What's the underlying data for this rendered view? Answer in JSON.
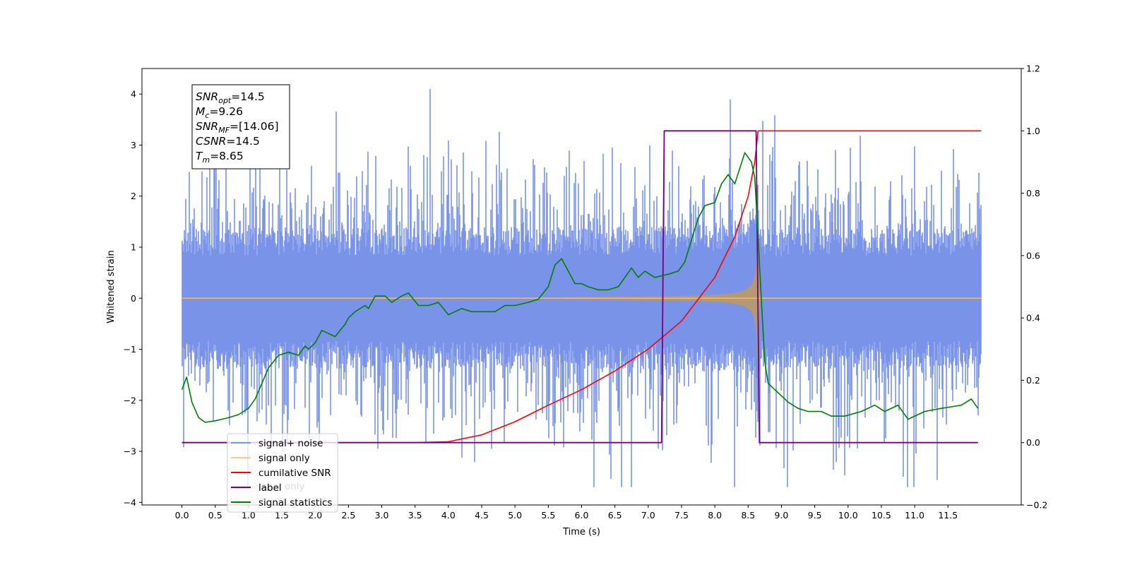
{
  "chart_data": {
    "type": "line",
    "title": "",
    "xlabel": "Time (s)",
    "ylabel": "Whitened strain",
    "y2label": "",
    "xlim": [
      -0.6,
      12.6
    ],
    "ylim": [
      -4.05,
      4.5
    ],
    "y2lim": [
      -0.2,
      1.2
    ],
    "xticks": [
      "0.0",
      "0.5",
      "1.0",
      "1.5",
      "2.0",
      "2.5",
      "3.0",
      "3.5",
      "4.0",
      "4.5",
      "5.0",
      "5.5",
      "6.0",
      "6.5",
      "7.0",
      "7.5",
      "8.0",
      "8.5",
      "9.0",
      "9.5",
      "10.0",
      "10.5",
      "11.0",
      "11.5"
    ],
    "yticks": [
      "−4",
      "−3",
      "−2",
      "−1",
      "0",
      "1",
      "2",
      "3",
      "4"
    ],
    "y2ticks": [
      "−0.2",
      "0.0",
      "0.2",
      "0.4",
      "0.6",
      "0.8",
      "1.0",
      "1.2"
    ],
    "grid": false,
    "legend_position": "bottom-left",
    "merger_time": 8.65,
    "signal_start": 7.22,
    "duration": 12.0,
    "noise_band_halfwidth": 1.1,
    "noise_peak_max": 4.1,
    "noise_trough_min": -3.7,
    "series": [
      {
        "name": "signal+ noise",
        "color": "#7993e8",
        "axis": "left",
        "description": "whitened noise plus injected chirp, roughly within ±1.1 with spikes up to 4.1 and down to -3.7"
      },
      {
        "name": "signal only",
        "color": "#f5b871",
        "axis": "left",
        "description": "chirp waveform, amplitude growing from 0 to about 1.3 at 8.65 s then ringdown"
      },
      {
        "name": "cumilative SNR",
        "color": "#ff0000",
        "axis": "right",
        "x": [
          0.0,
          3.5,
          4.0,
          4.5,
          5.0,
          5.5,
          6.0,
          6.5,
          7.0,
          7.5,
          8.0,
          8.3,
          8.5,
          8.6,
          8.65,
          12.0
        ],
        "y": [
          0.0,
          0.0,
          0.003,
          0.025,
          0.067,
          0.12,
          0.17,
          0.23,
          0.3,
          0.39,
          0.53,
          0.66,
          0.79,
          0.9,
          1.0,
          1.0
        ]
      },
      {
        "name": "label",
        "color": "#7a007a",
        "axis": "right",
        "x": [
          0.0,
          7.2,
          7.24,
          8.62,
          8.67,
          11.95
        ],
        "y": [
          0.0,
          0.0,
          1.0,
          1.0,
          0.0,
          0.0
        ]
      },
      {
        "name": "signal statistics",
        "color": "#008000",
        "axis": "right",
        "x": [
          0.0,
          0.07,
          0.15,
          0.25,
          0.35,
          0.5,
          0.6,
          0.7,
          0.85,
          1.0,
          1.1,
          1.2,
          1.3,
          1.45,
          1.6,
          1.75,
          1.85,
          1.9,
          2.0,
          2.1,
          2.3,
          2.45,
          2.5,
          2.6,
          2.75,
          2.8,
          2.9,
          3.05,
          3.15,
          3.3,
          3.4,
          3.55,
          3.7,
          3.85,
          4.0,
          4.2,
          4.35,
          4.55,
          4.7,
          4.85,
          5.0,
          5.2,
          5.35,
          5.5,
          5.6,
          5.7,
          5.8,
          5.9,
          6.0,
          6.1,
          6.25,
          6.4,
          6.55,
          6.65,
          6.75,
          6.85,
          6.95,
          7.1,
          7.3,
          7.45,
          7.55,
          7.65,
          7.75,
          7.85,
          8.0,
          8.1,
          8.2,
          8.3,
          8.45,
          8.55,
          8.6,
          8.65,
          8.7,
          8.75,
          8.8,
          8.9,
          9.0,
          9.1,
          9.25,
          9.4,
          9.6,
          9.75,
          9.95,
          10.2,
          10.4,
          10.55,
          10.75,
          10.9,
          11.15,
          11.4,
          11.55,
          11.7,
          11.85,
          11.95
        ],
        "y": [
          0.17,
          0.21,
          0.13,
          0.08,
          0.065,
          0.07,
          0.075,
          0.08,
          0.09,
          0.11,
          0.14,
          0.19,
          0.24,
          0.28,
          0.29,
          0.28,
          0.31,
          0.3,
          0.32,
          0.36,
          0.34,
          0.38,
          0.4,
          0.42,
          0.44,
          0.43,
          0.47,
          0.47,
          0.45,
          0.47,
          0.48,
          0.44,
          0.44,
          0.45,
          0.41,
          0.43,
          0.42,
          0.42,
          0.42,
          0.44,
          0.44,
          0.45,
          0.46,
          0.5,
          0.57,
          0.59,
          0.55,
          0.51,
          0.51,
          0.5,
          0.49,
          0.49,
          0.5,
          0.53,
          0.56,
          0.53,
          0.55,
          0.53,
          0.54,
          0.55,
          0.58,
          0.65,
          0.72,
          0.76,
          0.77,
          0.83,
          0.86,
          0.83,
          0.93,
          0.9,
          0.85,
          0.66,
          0.45,
          0.26,
          0.19,
          0.17,
          0.15,
          0.13,
          0.11,
          0.1,
          0.1,
          0.085,
          0.085,
          0.1,
          0.12,
          0.1,
          0.12,
          0.075,
          0.1,
          0.11,
          0.115,
          0.12,
          0.14,
          0.11
        ]
      }
    ],
    "annotation": [
      {
        "main": "SNR",
        "sub": "opt",
        "value": "=14.5"
      },
      {
        "main": "M",
        "sub": "c",
        "value": "=9.26"
      },
      {
        "main": "SNR",
        "sub": "MF",
        "value": "=[14.06]"
      },
      {
        "main": "CSNR",
        "sub": "",
        "value": "=14.5"
      },
      {
        "main": "T",
        "sub": "m",
        "value": "=8.65"
      }
    ],
    "legend_hidden_text": "label only"
  }
}
